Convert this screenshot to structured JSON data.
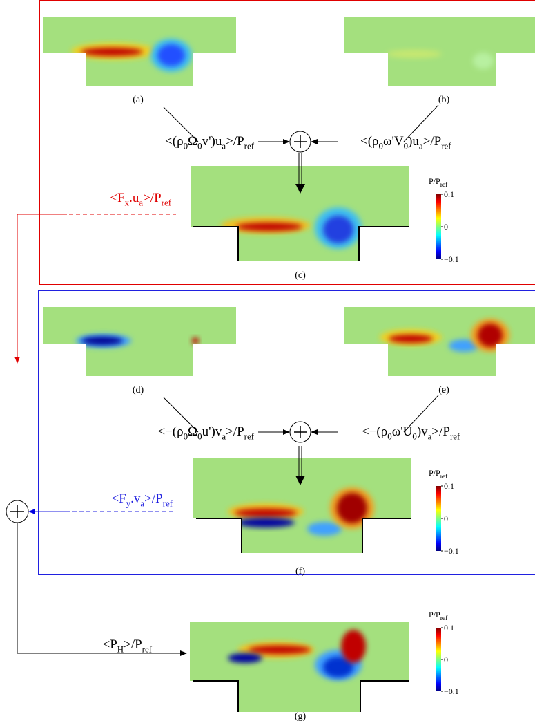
{
  "panels": [
    {
      "label": "(a)"
    },
    {
      "label": "(b)"
    },
    {
      "label": "(c)"
    },
    {
      "label": "(d)"
    },
    {
      "label": "(e)"
    },
    {
      "label": "(f)"
    },
    {
      "label": "(g)"
    }
  ],
  "terms": [
    {
      "segments": [
        {
          "text": "<(ρ"
        },
        {
          "sub": "0"
        },
        {
          "text": "Ω"
        },
        {
          "sub": "0"
        },
        {
          "text": "v')u"
        },
        {
          "sub": "a"
        },
        {
          "text": ">/P"
        },
        {
          "sub": "ref"
        }
      ]
    },
    {
      "segments": [
        {
          "text": "<(ρ"
        },
        {
          "sub": "0"
        },
        {
          "text": "ω'V"
        },
        {
          "sub": "0"
        },
        {
          "text": ")u"
        },
        {
          "sub": "a"
        },
        {
          "text": ">/P"
        },
        {
          "sub": "ref"
        }
      ]
    },
    {
      "segments": [
        {
          "text": "<F"
        },
        {
          "sub": "x"
        },
        {
          "text": ".u"
        },
        {
          "sub": "a"
        },
        {
          "text": ">/P"
        },
        {
          "sub": "ref"
        }
      ]
    },
    {
      "segments": [
        {
          "text": "<−(ρ"
        },
        {
          "sub": "0"
        },
        {
          "text": "Ω"
        },
        {
          "sub": "0"
        },
        {
          "text": "u')v"
        },
        {
          "sub": "a"
        },
        {
          "text": ">/P"
        },
        {
          "sub": "ref"
        }
      ]
    },
    {
      "segments": [
        {
          "text": "<−(ρ"
        },
        {
          "sub": "0"
        },
        {
          "text": "ω'U"
        },
        {
          "sub": "0"
        },
        {
          "text": ")v"
        },
        {
          "sub": "a"
        },
        {
          "text": ">/P"
        },
        {
          "sub": "ref"
        }
      ]
    },
    {
      "segments": [
        {
          "text": "<F"
        },
        {
          "sub": "y"
        },
        {
          "text": ".v"
        },
        {
          "sub": "a"
        },
        {
          "text": ">/P"
        },
        {
          "sub": "ref"
        }
      ]
    },
    {
      "segments": [
        {
          "text": "<P"
        },
        {
          "sub": "H"
        },
        {
          "text": ">/P"
        },
        {
          "sub": "ref"
        }
      ]
    }
  ],
  "colorbars": [
    {
      "title": [
        {
          "text": "P/P"
        },
        {
          "sub": "ref"
        }
      ],
      "ticks": [
        0.1,
        0,
        {
          "value": -0.1,
          "label": "−0.1"
        }
      ]
    },
    {
      "title": [
        {
          "text": "P/P"
        },
        {
          "sub": "ref"
        }
      ],
      "ticks": [
        0.1,
        0,
        {
          "value": -0.1,
          "label": "−0.1"
        }
      ]
    },
    {
      "title": [
        {
          "text": "P/P"
        },
        {
          "sub": "ref"
        }
      ],
      "ticks": [
        0.1,
        0,
        {
          "value": -0.1,
          "label": "−0.1"
        }
      ]
    }
  ]
}
